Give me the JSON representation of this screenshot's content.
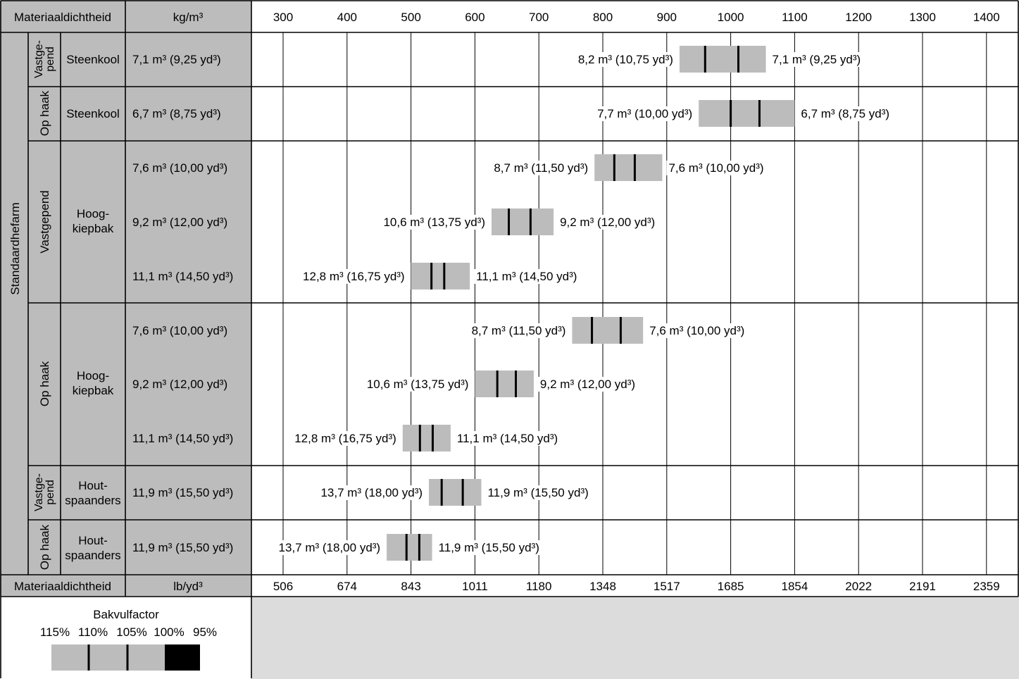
{
  "header": {
    "density_label": "Materiaaldichtheid",
    "kg_unit": "kg/m³",
    "kg_ticks": [
      "300",
      "400",
      "500",
      "600",
      "700",
      "800",
      "900",
      "1000",
      "1100",
      "1200",
      "1300",
      "1400"
    ]
  },
  "footer": {
    "density_label": "Materiaaldichtheid",
    "lb_unit": "lb/yd³",
    "lb_ticks": [
      "506",
      "674",
      "843",
      "1011",
      "1180",
      "1348",
      "1517",
      "1685",
      "1854",
      "2022",
      "2191",
      "2359"
    ]
  },
  "legend": {
    "title": "Bakvulfactor",
    "factors": [
      "115%",
      "110%",
      "105%",
      "100%",
      "95%"
    ]
  },
  "groups": {
    "standard_boom": "Standaardhefarm",
    "fixed_two_line": [
      "Vastge-",
      "pend"
    ],
    "fixed": "Vastgepend",
    "on_hook": "Op haak"
  },
  "materials": {
    "coal": "Steenkool",
    "high_dump_lines": [
      "Hoog-",
      "kiepbak"
    ],
    "wood_chips_lines": [
      "Hout-",
      "spaanders"
    ]
  },
  "chart_data": {
    "type": "bar",
    "title": "",
    "xlabel": "kg/m³",
    "xlabel_secondary": "lb/yd³",
    "xlim": [
      300,
      1400
    ],
    "x_ticks_kg_m3": [
      300,
      400,
      500,
      600,
      700,
      800,
      900,
      1000,
      1100,
      1200,
      1300,
      1400
    ],
    "x_ticks_lb_yd3": [
      506,
      674,
      843,
      1011,
      1180,
      1348,
      1517,
      1685,
      1854,
      2022,
      2191,
      2359
    ],
    "legend": [
      "115%",
      "110%",
      "105%",
      "100%",
      "95%"
    ],
    "rows": [
      {
        "group": "Standaardhefarm",
        "mount": "Vastgepend",
        "material": "Steenkool",
        "bucket": "7,1 m³ (9,25 yd³)",
        "left_label": "8,2 m³ (10,75 yd³)",
        "right_label": "7,1 m³ (9,25 yd³)",
        "range_kg_m3": [
          920,
          1055
        ],
        "marks_kg_m3": [
          960,
          1012
        ]
      },
      {
        "group": "Standaardhefarm",
        "mount": "Op haak",
        "material": "Steenkool",
        "bucket": "6,7 m³ (8,75 yd³)",
        "left_label": "7,7 m³ (10,00 yd³)",
        "right_label": "6,7 m³ (8,75 yd³)",
        "range_kg_m3": [
          950,
          1100
        ],
        "marks_kg_m3": [
          1000,
          1045
        ]
      },
      {
        "group": "Standaardhefarm",
        "mount": "Vastgepend",
        "material": "Hoog-kiepbak",
        "bucket": "7,6 m³ (10,00 yd³)",
        "left_label": "8,7 m³ (11,50 yd³)",
        "right_label": "7,6 m³ (10,00 yd³)",
        "range_kg_m3": [
          787,
          893
        ],
        "marks_kg_m3": [
          818,
          850
        ]
      },
      {
        "group": "Standaardhefarm",
        "mount": "Vastgepend",
        "material": "Hoog-kiepbak",
        "bucket": "9,2 m³ (12,00 yd³)",
        "left_label": "10,6 m³ (13,75 yd³)",
        "right_label": "9,2 m³ (12,00 yd³)",
        "range_kg_m3": [
          626,
          723
        ],
        "marks_kg_m3": [
          653,
          687
        ]
      },
      {
        "group": "Standaardhefarm",
        "mount": "Vastgepend",
        "material": "Hoog-kiepbak",
        "bucket": "11,1 m³ (14,50 yd³)",
        "left_label": "12,8 m³ (16,75 yd³)",
        "right_label": "11,1 m³ (14,50 yd³)",
        "range_kg_m3": [
          500,
          592
        ],
        "marks_kg_m3": [
          532,
          552
        ]
      },
      {
        "group": "Standaardhefarm",
        "mount": "Op haak",
        "material": "Hoog-kiepbak",
        "bucket": "7,6 m³ (10,00 yd³)",
        "left_label": "8,7 m³ (11,50 yd³)",
        "right_label": "7,6 m³ (10,00 yd³)",
        "range_kg_m3": [
          752,
          863
        ],
        "marks_kg_m3": [
          783,
          828
        ]
      },
      {
        "group": "Standaardhefarm",
        "mount": "Op haak",
        "material": "Hoog-kiepbak",
        "bucket": "9,2 m³ (12,00 yd³)",
        "left_label": "10,6 m³ (13,75 yd³)",
        "right_label": "9,2 m³ (12,00 yd³)",
        "range_kg_m3": [
          600,
          692
        ],
        "marks_kg_m3": [
          635,
          664
        ]
      },
      {
        "group": "Standaardhefarm",
        "mount": "Op haak",
        "material": "Hoog-kiepbak",
        "bucket": "11,1 m³ (14,50 yd³)",
        "left_label": "12,8 m³ (16,75 yd³)",
        "right_label": "11,1 m³ (14,50 yd³)",
        "range_kg_m3": [
          487,
          562
        ],
        "marks_kg_m3": [
          514,
          534
        ]
      },
      {
        "group": "Standaardhefarm",
        "mount": "Vastgepend",
        "material": "Hout-spaanders",
        "bucket": "11,9 m³ (15,50 yd³)",
        "left_label": "13,7 m³ (18,00 yd³)",
        "right_label": "11,9 m³ (15,50 yd³)",
        "range_kg_m3": [
          528,
          610
        ],
        "marks_kg_m3": [
          548,
          581
        ]
      },
      {
        "group": "Standaardhefarm",
        "mount": "Op haak",
        "material": "Hout-spaanders",
        "bucket": "11,9 m³ (15,50 yd³)",
        "left_label": "13,7 m³ (18,00 yd³)",
        "right_label": "11,9 m³ (15,50 yd³)",
        "range_kg_m3": [
          462,
          533
        ],
        "marks_kg_m3": [
          493,
          513
        ]
      }
    ]
  }
}
